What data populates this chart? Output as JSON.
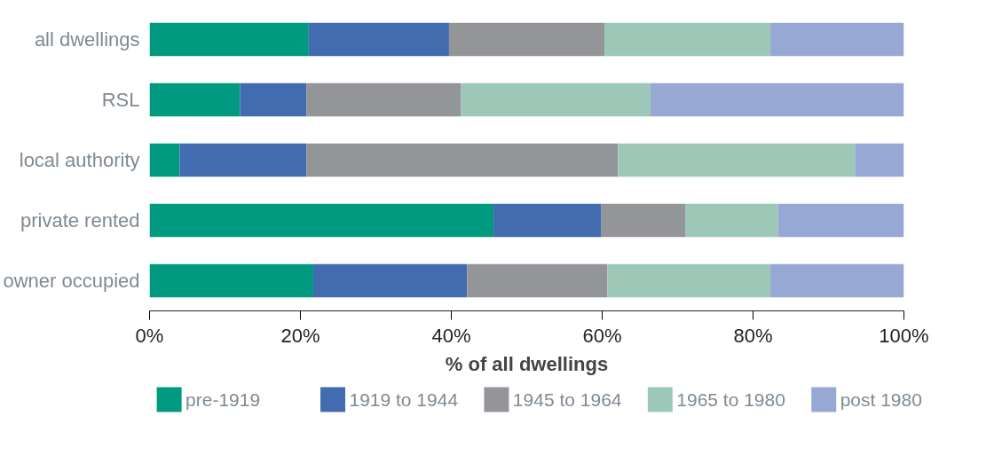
{
  "chart_data": {
    "type": "bar",
    "orientation": "horizontal",
    "stacked": true,
    "xlabel": "% of all dwellings",
    "categories": [
      "all dwellings",
      "RSL",
      "local authority",
      "private rented",
      "owner occupied"
    ],
    "series": [
      {
        "name": "pre-1919",
        "color": "#009a80",
        "values": [
          21.1,
          12.0,
          4.0,
          45.6,
          21.7
        ]
      },
      {
        "name": "1919 to 1944",
        "color": "#436bb0",
        "values": [
          18.6,
          8.8,
          16.8,
          14.3,
          20.4
        ]
      },
      {
        "name": "1945 to 1964",
        "color": "#939598",
        "values": [
          20.6,
          20.5,
          41.3,
          11.1,
          18.6
        ]
      },
      {
        "name": "1965 to 1980",
        "color": "#9dc8b8",
        "values": [
          22.0,
          25.1,
          31.4,
          12.3,
          21.6
        ]
      },
      {
        "name": "post 1980",
        "color": "#98a8d4",
        "values": [
          17.7,
          33.6,
          6.5,
          16.7,
          17.7
        ]
      }
    ],
    "xlim": [
      0,
      100
    ],
    "xticks": [
      {
        "value": 0,
        "label": "0%"
      },
      {
        "value": 20,
        "label": "20%"
      },
      {
        "value": 40,
        "label": "40%"
      },
      {
        "value": 60,
        "label": "60%"
      },
      {
        "value": 80,
        "label": "80%"
      },
      {
        "value": 100,
        "label": "100%"
      }
    ],
    "grid": false,
    "legend": "bottom"
  }
}
